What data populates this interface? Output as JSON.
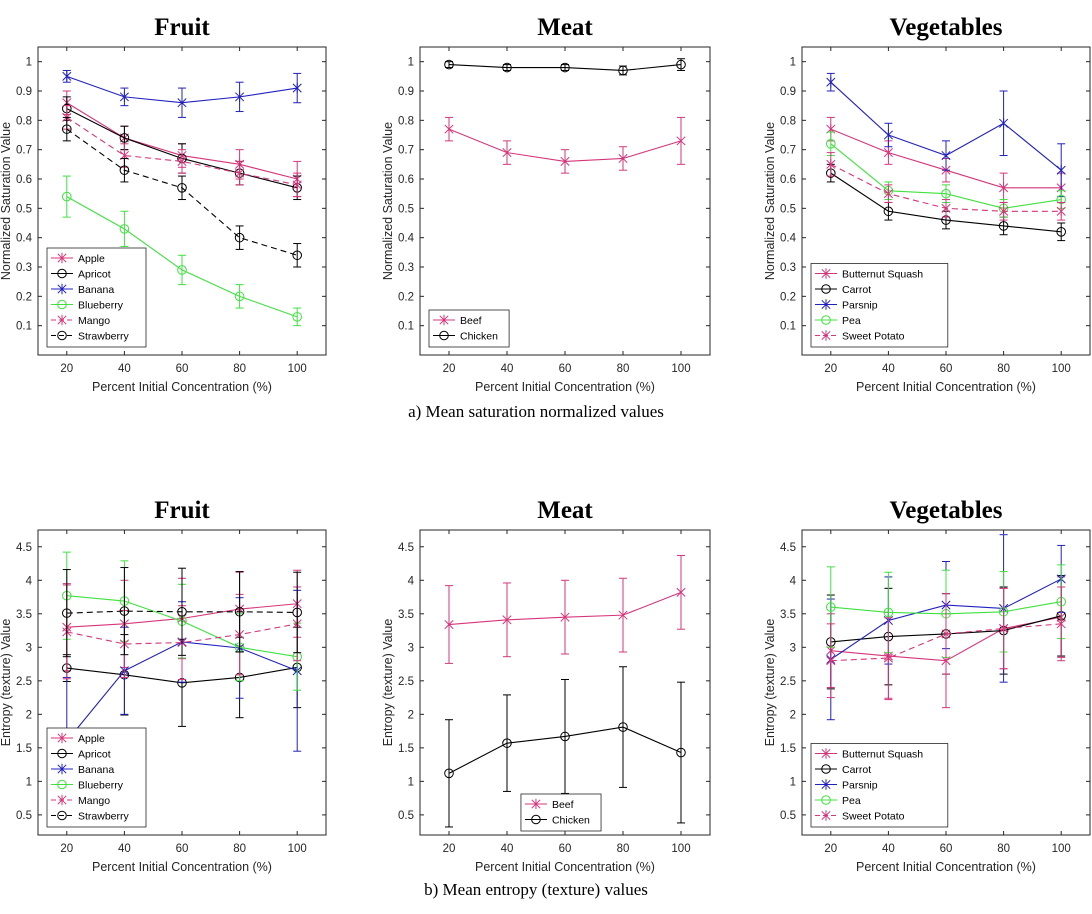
{
  "captions": {
    "a": "a) Mean saturation normalized values",
    "b": "b) Mean entropy (texture) values"
  },
  "colors": {
    "pink": "#d6357b",
    "black": "#000000",
    "blue": "#2020c0",
    "green": "#3fe13f"
  },
  "chart_data": [
    {
      "type": "line",
      "title": "Fruit",
      "xlabel": "Percent Initial Concentration (%)",
      "ylabel": "Normalized Saturation Value",
      "x": [
        20,
        40,
        60,
        80,
        100
      ],
      "xlim": [
        10,
        110
      ],
      "ylim": [
        0,
        1.05
      ],
      "yticks": [
        0.1,
        0.2,
        0.3,
        0.4,
        0.5,
        0.6,
        0.7,
        0.8,
        0.9,
        1
      ],
      "legend_position": "bottom-left",
      "series": [
        {
          "name": "Apple",
          "color": "pink",
          "marker": "x",
          "dash": "solid",
          "values": [
            0.86,
            0.74,
            0.68,
            0.65,
            0.6
          ],
          "err": [
            0.04,
            0.04,
            0.04,
            0.05,
            0.06
          ]
        },
        {
          "name": "Apricot",
          "color": "black",
          "marker": "o",
          "dash": "solid",
          "values": [
            0.84,
            0.74,
            0.67,
            0.62,
            0.57
          ],
          "err": [
            0.04,
            0.04,
            0.05,
            0.04,
            0.04
          ]
        },
        {
          "name": "Banana",
          "color": "blue",
          "marker": "x",
          "dash": "solid",
          "values": [
            0.95,
            0.88,
            0.86,
            0.88,
            0.91
          ],
          "err": [
            0.02,
            0.03,
            0.05,
            0.05,
            0.05
          ]
        },
        {
          "name": "Blueberry",
          "color": "green",
          "marker": "o",
          "dash": "solid",
          "values": [
            0.54,
            0.43,
            0.29,
            0.2,
            0.13
          ],
          "err": [
            0.07,
            0.06,
            0.05,
            0.04,
            0.03
          ]
        },
        {
          "name": "Mango",
          "color": "pink",
          "marker": "x",
          "dash": "dashed",
          "values": [
            0.81,
            0.68,
            0.66,
            0.62,
            0.58
          ],
          "err": [
            0.04,
            0.04,
            0.04,
            0.04,
            0.04
          ]
        },
        {
          "name": "Strawberry",
          "color": "black",
          "marker": "o",
          "dash": "dashed",
          "values": [
            0.77,
            0.63,
            0.57,
            0.4,
            0.34
          ],
          "err": [
            0.04,
            0.04,
            0.04,
            0.04,
            0.04
          ]
        }
      ]
    },
    {
      "type": "line",
      "title": "Meat",
      "xlabel": "Percent Initial Concentration (%)",
      "ylabel": "Normalized Saturation Value",
      "x": [
        20,
        40,
        60,
        80,
        100
      ],
      "xlim": [
        10,
        110
      ],
      "ylim": [
        0,
        1.05
      ],
      "yticks": [
        0.1,
        0.2,
        0.3,
        0.4,
        0.5,
        0.6,
        0.7,
        0.8,
        0.9,
        1
      ],
      "legend_position": "bottom-left",
      "series": [
        {
          "name": "Beef",
          "color": "pink",
          "marker": "x",
          "dash": "solid",
          "values": [
            0.77,
            0.69,
            0.66,
            0.67,
            0.73
          ],
          "err": [
            0.04,
            0.04,
            0.04,
            0.04,
            0.08
          ]
        },
        {
          "name": "Chicken",
          "color": "black",
          "marker": "o",
          "dash": "solid",
          "values": [
            0.99,
            0.98,
            0.98,
            0.97,
            0.99
          ],
          "err": [
            0.01,
            0.01,
            0.01,
            0.015,
            0.02
          ]
        }
      ]
    },
    {
      "type": "line",
      "title": "Vegetables",
      "xlabel": "Percent Initial Concentration (%)",
      "ylabel": "Normalized Saturation Value",
      "x": [
        20,
        40,
        60,
        80,
        100
      ],
      "xlim": [
        10,
        110
      ],
      "ylim": [
        0,
        1.05
      ],
      "yticks": [
        0.1,
        0.2,
        0.3,
        0.4,
        0.5,
        0.6,
        0.7,
        0.8,
        0.9,
        1
      ],
      "legend_position": "bottom-left",
      "series": [
        {
          "name": "Butternut Squash",
          "color": "pink",
          "marker": "x",
          "dash": "solid",
          "values": [
            0.77,
            0.69,
            0.63,
            0.57,
            0.57
          ],
          "err": [
            0.04,
            0.04,
            0.04,
            0.05,
            0.05
          ]
        },
        {
          "name": "Carrot",
          "color": "black",
          "marker": "o",
          "dash": "solid",
          "values": [
            0.62,
            0.49,
            0.46,
            0.44,
            0.42
          ],
          "err": [
            0.03,
            0.03,
            0.03,
            0.03,
            0.03
          ]
        },
        {
          "name": "Parsnip",
          "color": "blue",
          "marker": "x",
          "dash": "solid",
          "values": [
            0.93,
            0.75,
            0.68,
            0.79,
            0.63
          ],
          "err": [
            0.03,
            0.04,
            0.05,
            0.11,
            0.09
          ]
        },
        {
          "name": "Pea",
          "color": "green",
          "marker": "o",
          "dash": "solid",
          "values": [
            0.72,
            0.56,
            0.55,
            0.5,
            0.53
          ],
          "err": [
            0.04,
            0.03,
            0.03,
            0.03,
            0.03
          ]
        },
        {
          "name": "Sweet Potato",
          "color": "pink",
          "marker": "x",
          "dash": "dashed",
          "values": [
            0.65,
            0.55,
            0.5,
            0.49,
            0.49
          ],
          "err": [
            0.04,
            0.03,
            0.03,
            0.03,
            0.03
          ]
        }
      ]
    },
    {
      "type": "line",
      "title": "Fruit",
      "xlabel": "Percent Initial Concentration (%)",
      "ylabel": "Entropy (texture) Value",
      "x": [
        20,
        40,
        60,
        80,
        100
      ],
      "xlim": [
        10,
        110
      ],
      "ylim": [
        0.2,
        4.75
      ],
      "yticks": [
        0.5,
        1,
        1.5,
        2,
        2.5,
        3,
        3.5,
        4,
        4.5
      ],
      "legend_position": "bottom-left",
      "series": [
        {
          "name": "Apple",
          "color": "pink",
          "marker": "x",
          "dash": "solid",
          "values": [
            3.3,
            3.35,
            3.43,
            3.57,
            3.65
          ],
          "err": [
            0.65,
            0.65,
            0.6,
            0.55,
            0.5
          ]
        },
        {
          "name": "Apricot",
          "color": "black",
          "marker": "o",
          "dash": "solid",
          "values": [
            2.69,
            2.59,
            2.47,
            2.55,
            2.7
          ],
          "err": [
            0.2,
            0.6,
            0.65,
            0.6,
            0.6
          ]
        },
        {
          "name": "Banana",
          "color": "blue",
          "marker": "x",
          "dash": "solid",
          "values": [
            1.6,
            2.65,
            3.08,
            2.99,
            2.65
          ],
          "err": [
            0.95,
            0.65,
            0.6,
            0.75,
            1.2
          ]
        },
        {
          "name": "Blueberry",
          "color": "green",
          "marker": "o",
          "dash": "solid",
          "values": [
            3.77,
            3.69,
            3.39,
            3.0,
            2.86
          ],
          "err": [
            0.65,
            0.6,
            0.55,
            0.5,
            0.5
          ]
        },
        {
          "name": "Mango",
          "color": "pink",
          "marker": "x",
          "dash": "dashed",
          "values": [
            3.23,
            3.05,
            3.07,
            3.19,
            3.35
          ],
          "err": [
            0.7,
            0.5,
            0.55,
            0.6,
            0.55
          ]
        },
        {
          "name": "Strawberry",
          "color": "black",
          "marker": "o",
          "dash": "dashed",
          "values": [
            3.51,
            3.54,
            3.53,
            3.53,
            3.52
          ],
          "err": [
            0.65,
            0.65,
            0.65,
            0.6,
            0.6
          ]
        }
      ]
    },
    {
      "type": "line",
      "title": "Meat",
      "xlabel": "Percent Initial Concentration (%)",
      "ylabel": "Entropy (texture) Value",
      "x": [
        20,
        40,
        60,
        80,
        100
      ],
      "xlim": [
        10,
        110
      ],
      "ylim": [
        0.2,
        4.75
      ],
      "yticks": [
        0.5,
        1,
        1.5,
        2,
        2.5,
        3,
        3.5,
        4,
        4.5
      ],
      "legend_position": "bottom-center",
      "series": [
        {
          "name": "Beef",
          "color": "pink",
          "marker": "x",
          "dash": "solid",
          "values": [
            3.34,
            3.41,
            3.45,
            3.48,
            3.82
          ],
          "err": [
            0.58,
            0.55,
            0.55,
            0.55,
            0.55
          ]
        },
        {
          "name": "Chicken",
          "color": "black",
          "marker": "o",
          "dash": "solid",
          "values": [
            1.12,
            1.57,
            1.67,
            1.81,
            1.43
          ],
          "err": [
            0.8,
            0.72,
            0.85,
            0.9,
            1.05
          ]
        }
      ]
    },
    {
      "type": "line",
      "title": "Vegetables",
      "xlabel": "Percent Initial Concentration (%)",
      "ylabel": "Entropy (texture) Value",
      "x": [
        20,
        40,
        60,
        80,
        100
      ],
      "xlim": [
        10,
        110
      ],
      "ylim": [
        0.2,
        4.75
      ],
      "yticks": [
        0.5,
        1,
        1.5,
        2,
        2.5,
        3,
        3.5,
        4,
        4.5
      ],
      "legend_position": "bottom-left",
      "series": [
        {
          "name": "Butternut Squash",
          "color": "pink",
          "marker": "x",
          "dash": "solid",
          "values": [
            2.95,
            2.87,
            2.8,
            3.28,
            3.45
          ],
          "err": [
            0.55,
            0.65,
            0.7,
            0.6,
            0.6
          ]
        },
        {
          "name": "Carrot",
          "color": "black",
          "marker": "o",
          "dash": "solid",
          "values": [
            3.08,
            3.16,
            3.2,
            3.25,
            3.47
          ],
          "err": [
            0.7,
            0.72,
            0.6,
            0.65,
            0.6
          ]
        },
        {
          "name": "Parsnip",
          "color": "blue",
          "marker": "x",
          "dash": "solid",
          "values": [
            2.82,
            3.4,
            3.63,
            3.58,
            4.02
          ],
          "err": [
            0.9,
            0.65,
            0.65,
            1.1,
            0.5
          ]
        },
        {
          "name": "Pea",
          "color": "green",
          "marker": "o",
          "dash": "solid",
          "values": [
            3.6,
            3.52,
            3.5,
            3.53,
            3.68
          ],
          "err": [
            0.6,
            0.6,
            0.65,
            0.6,
            0.55
          ]
        },
        {
          "name": "Sweet Potato",
          "color": "pink",
          "marker": "x",
          "dash": "dashed",
          "values": [
            2.8,
            2.84,
            3.2,
            3.28,
            3.35
          ],
          "err": [
            0.55,
            0.6,
            0.6,
            0.6,
            0.55
          ]
        }
      ]
    }
  ]
}
